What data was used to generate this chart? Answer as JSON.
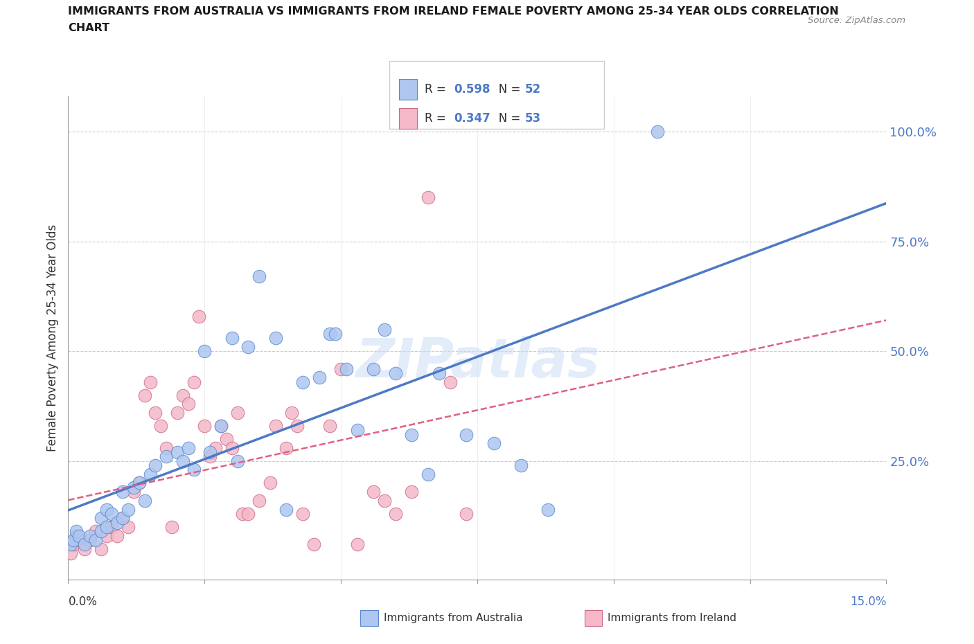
{
  "title_line1": "IMMIGRANTS FROM AUSTRALIA VS IMMIGRANTS FROM IRELAND FEMALE POVERTY AMONG 25-34 YEAR OLDS CORRELATION",
  "title_line2": "CHART",
  "source": "Source: ZipAtlas.com",
  "ylabel": "Female Poverty Among 25-34 Year Olds",
  "ytick_vals": [
    0.25,
    0.5,
    0.75,
    1.0
  ],
  "ytick_labels": [
    "25.0%",
    "50.0%",
    "75.0%",
    "100.0%"
  ],
  "xlim": [
    0.0,
    0.15
  ],
  "ylim": [
    -0.02,
    1.08
  ],
  "australia_color": "#aec6f0",
  "australia_edge": "#5588cc",
  "ireland_color": "#f4b8c8",
  "ireland_edge": "#cc6688",
  "line_australia": "#4d79c7",
  "line_ireland": "#e06080",
  "R_australia": "0.598",
  "N_australia": "52",
  "R_ireland": "0.347",
  "N_ireland": "53",
  "watermark": "ZIPatlas",
  "australia_x": [
    0.0005,
    0.001,
    0.0015,
    0.002,
    0.003,
    0.004,
    0.005,
    0.006,
    0.006,
    0.007,
    0.007,
    0.008,
    0.009,
    0.01,
    0.01,
    0.011,
    0.012,
    0.013,
    0.014,
    0.015,
    0.016,
    0.018,
    0.02,
    0.021,
    0.022,
    0.023,
    0.025,
    0.026,
    0.028,
    0.03,
    0.031,
    0.033,
    0.035,
    0.038,
    0.04,
    0.043,
    0.046,
    0.048,
    0.049,
    0.051,
    0.053,
    0.056,
    0.058,
    0.06,
    0.063,
    0.066,
    0.068,
    0.073,
    0.078,
    0.083,
    0.088,
    0.108
  ],
  "australia_y": [
    0.06,
    0.07,
    0.09,
    0.08,
    0.06,
    0.08,
    0.07,
    0.09,
    0.12,
    0.1,
    0.14,
    0.13,
    0.11,
    0.12,
    0.18,
    0.14,
    0.19,
    0.2,
    0.16,
    0.22,
    0.24,
    0.26,
    0.27,
    0.25,
    0.28,
    0.23,
    0.5,
    0.27,
    0.33,
    0.53,
    0.25,
    0.51,
    0.67,
    0.53,
    0.14,
    0.43,
    0.44,
    0.54,
    0.54,
    0.46,
    0.32,
    0.46,
    0.55,
    0.45,
    0.31,
    0.22,
    0.45,
    0.31,
    0.29,
    0.24,
    0.14,
    1.0
  ],
  "ireland_x": [
    0.0005,
    0.001,
    0.0015,
    0.002,
    0.003,
    0.004,
    0.005,
    0.006,
    0.007,
    0.008,
    0.009,
    0.01,
    0.011,
    0.012,
    0.013,
    0.014,
    0.015,
    0.016,
    0.017,
    0.018,
    0.019,
    0.02,
    0.021,
    0.022,
    0.023,
    0.024,
    0.025,
    0.026,
    0.027,
    0.028,
    0.029,
    0.03,
    0.031,
    0.032,
    0.033,
    0.035,
    0.037,
    0.038,
    0.04,
    0.041,
    0.042,
    0.043,
    0.045,
    0.048,
    0.05,
    0.053,
    0.056,
    0.058,
    0.06,
    0.063,
    0.066,
    0.07,
    0.073
  ],
  "ireland_y": [
    0.04,
    0.06,
    0.08,
    0.07,
    0.05,
    0.07,
    0.09,
    0.05,
    0.08,
    0.1,
    0.08,
    0.12,
    0.1,
    0.18,
    0.2,
    0.4,
    0.43,
    0.36,
    0.33,
    0.28,
    0.1,
    0.36,
    0.4,
    0.38,
    0.43,
    0.58,
    0.33,
    0.26,
    0.28,
    0.33,
    0.3,
    0.28,
    0.36,
    0.13,
    0.13,
    0.16,
    0.2,
    0.33,
    0.28,
    0.36,
    0.33,
    0.13,
    0.06,
    0.33,
    0.46,
    0.06,
    0.18,
    0.16,
    0.13,
    0.18,
    0.85,
    0.43,
    0.13
  ]
}
